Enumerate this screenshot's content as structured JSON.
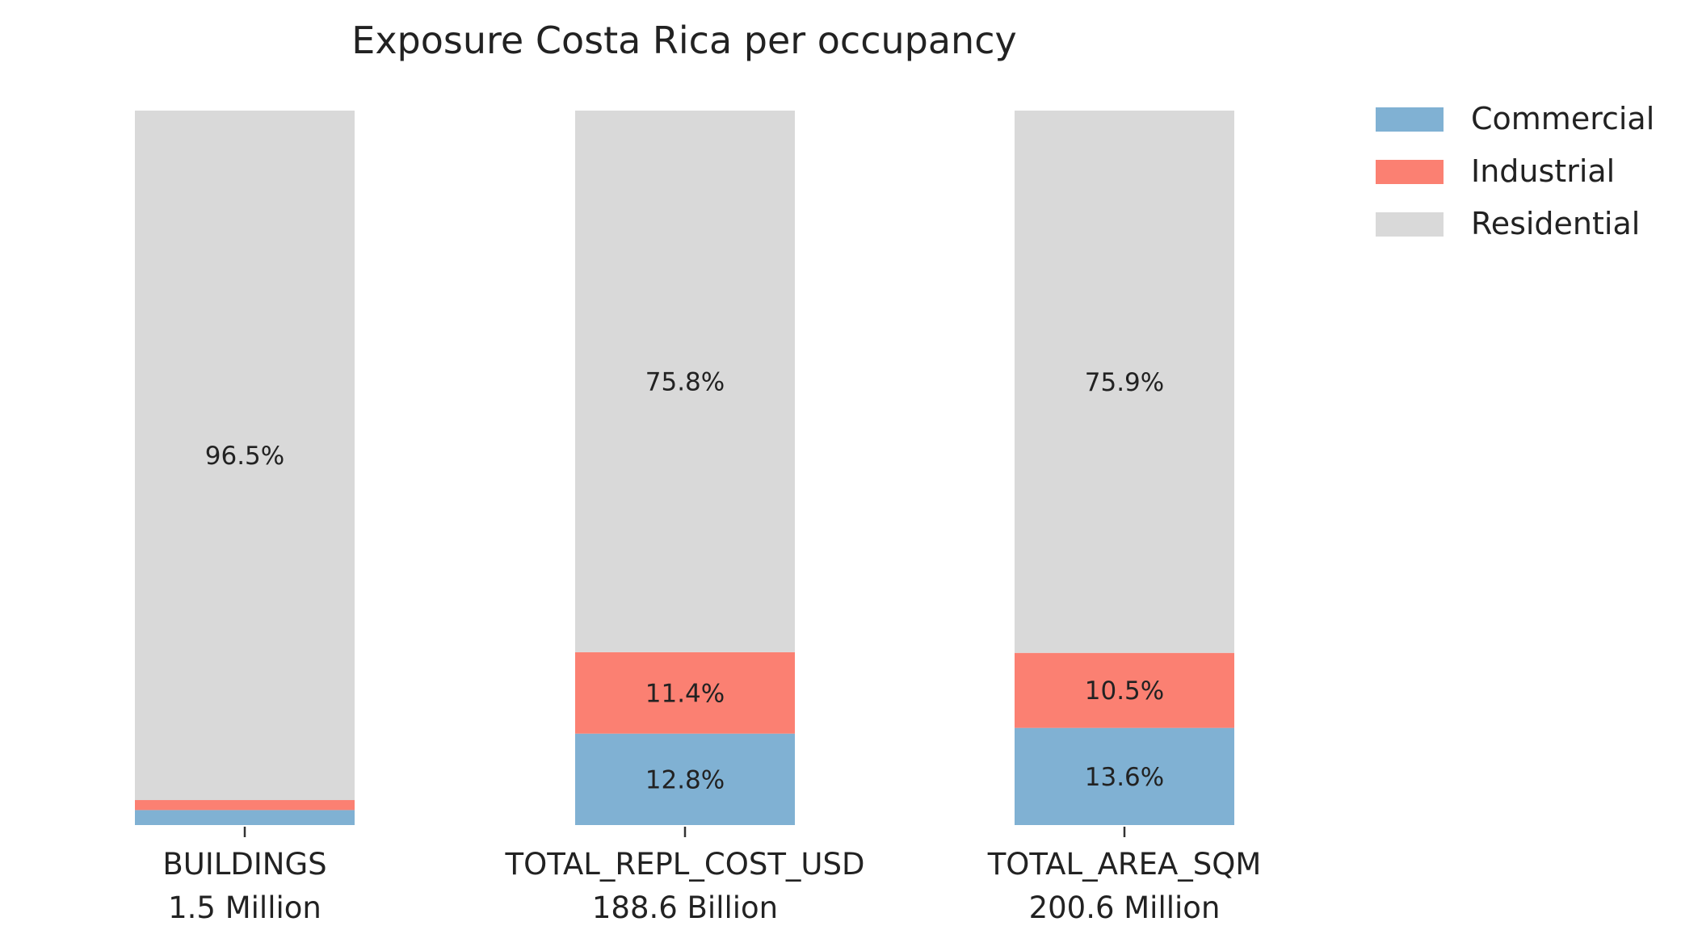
{
  "chart_data": {
    "type": "bar",
    "stacked": true,
    "normalized": true,
    "title": "Exposure Costa Rica per occupancy",
    "categories": [
      "BUILDINGS",
      "TOTAL_REPL_COST_USD",
      "TOTAL_AREA_SQM"
    ],
    "category_totals": [
      "1.5 Million",
      "188.6 Billion",
      "200.6 Million"
    ],
    "series": [
      {
        "name": "Commercial",
        "color": "#80b1d3",
        "values": [
          2.1,
          12.8,
          13.6
        ],
        "labels": [
          "",
          "12.8%",
          "13.6%"
        ]
      },
      {
        "name": "Industrial",
        "color": "#fb8072",
        "values": [
          1.4,
          11.4,
          10.5
        ],
        "labels": [
          "",
          "11.4%",
          "10.5%"
        ]
      },
      {
        "name": "Residential",
        "color": "#d9d9d9",
        "values": [
          96.5,
          75.8,
          75.9
        ],
        "labels": [
          "96.5%",
          "75.8%",
          "75.9%"
        ]
      }
    ],
    "ylim": [
      0,
      100
    ],
    "unit": "%",
    "grid": false,
    "legend": "top-right",
    "xlabel": "",
    "ylabel": ""
  }
}
